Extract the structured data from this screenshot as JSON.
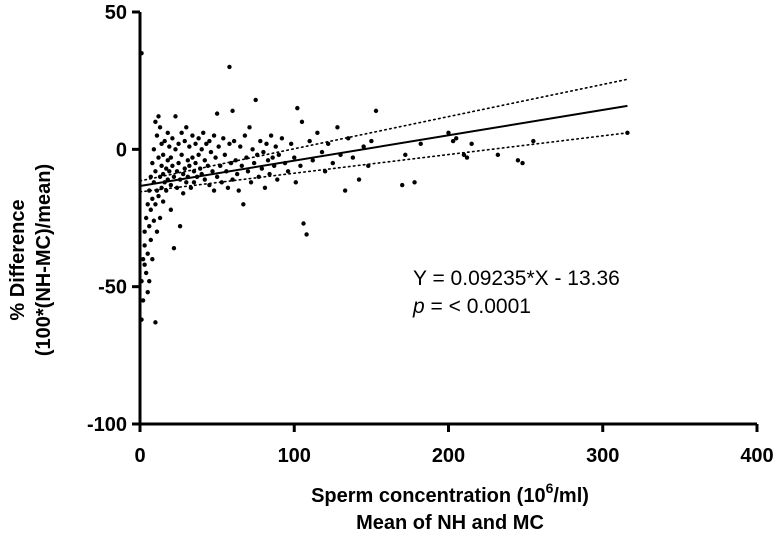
{
  "chart_data": {
    "type": "scatter",
    "title": "",
    "xlabel_line1": "Sperm concentration (10",
    "xlabel_sup": "6",
    "xlabel_line1_end": "/ml)",
    "xlabel_line2": "Mean of NH and MC",
    "ylabel_line1": "% Difference",
    "ylabel_line2": "(100*(NH-MC)/mean)",
    "xlim": [
      0,
      400
    ],
    "ylim": [
      -100,
      50
    ],
    "xticks": [
      0,
      100,
      200,
      300,
      400
    ],
    "yticks": [
      -100,
      -50,
      0,
      50
    ],
    "xtick_labels": [
      "0",
      "100",
      "200",
      "300",
      "400"
    ],
    "ytick_labels": [
      "-100",
      "-50",
      "0",
      "50"
    ],
    "grid": false,
    "regression": {
      "slope": 0.09235,
      "intercept": -13.36,
      "x_range": [
        0,
        316
      ]
    },
    "confidence_band": {
      "upper": [
        [
          0,
          -11.5
        ],
        [
          316,
          25.5
        ]
      ],
      "lower": [
        [
          0,
          -15.5
        ],
        [
          316,
          6
        ]
      ]
    },
    "annotation_equation": "Y = 0.09235*X - 13.36",
    "annotation_p_italic": "p",
    "annotation_p_rest": " = < 0.0001",
    "points": [
      [
        1,
        35
      ],
      [
        1,
        -48
      ],
      [
        1,
        -62
      ],
      [
        2,
        -40
      ],
      [
        2,
        -55
      ],
      [
        3,
        -35
      ],
      [
        3,
        -42
      ],
      [
        3,
        -30
      ],
      [
        4,
        -25
      ],
      [
        4,
        -45
      ],
      [
        5,
        -52
      ],
      [
        5,
        -20
      ],
      [
        5,
        -38
      ],
      [
        6,
        -15
      ],
      [
        6,
        -28
      ],
      [
        6,
        -48
      ],
      [
        7,
        -10
      ],
      [
        7,
        -22
      ],
      [
        7,
        -33
      ],
      [
        8,
        -5
      ],
      [
        8,
        -18
      ],
      [
        8,
        -40
      ],
      [
        9,
        0
      ],
      [
        9,
        -12
      ],
      [
        9,
        -26
      ],
      [
        10,
        10
      ],
      [
        10,
        -8
      ],
      [
        10,
        -20
      ],
      [
        10,
        -63
      ],
      [
        11,
        5
      ],
      [
        11,
        -15
      ],
      [
        11,
        -30
      ],
      [
        12,
        12
      ],
      [
        12,
        -3
      ],
      [
        12,
        -17
      ],
      [
        13,
        8
      ],
      [
        13,
        -10
      ],
      [
        13,
        -25
      ],
      [
        14,
        2
      ],
      [
        14,
        -6
      ],
      [
        14,
        -14
      ],
      [
        15,
        -2
      ],
      [
        15,
        -9
      ],
      [
        15,
        -19
      ],
      [
        16,
        3
      ],
      [
        16,
        -12
      ],
      [
        17,
        -7
      ],
      [
        17,
        -15
      ],
      [
        18,
        6
      ],
      [
        18,
        -4
      ],
      [
        18,
        -11
      ],
      [
        19,
        1
      ],
      [
        19,
        -8
      ],
      [
        20,
        -3
      ],
      [
        20,
        -13
      ],
      [
        20,
        -22
      ],
      [
        21,
        4
      ],
      [
        21,
        -6
      ],
      [
        22,
        -10
      ],
      [
        22,
        -36
      ],
      [
        23,
        0
      ],
      [
        23,
        12
      ],
      [
        24,
        -8
      ],
      [
        24,
        -14
      ],
      [
        25,
        2
      ],
      [
        25,
        -5
      ],
      [
        26,
        -11
      ],
      [
        26,
        -28
      ],
      [
        27,
        6
      ],
      [
        27,
        -2
      ],
      [
        28,
        -9
      ],
      [
        28,
        -16
      ],
      [
        29,
        3
      ],
      [
        29,
        -7
      ],
      [
        30,
        -12
      ],
      [
        30,
        8
      ],
      [
        31,
        -4
      ],
      [
        31,
        -10
      ],
      [
        32,
        1
      ],
      [
        32,
        -6
      ],
      [
        33,
        -14
      ],
      [
        34,
        5
      ],
      [
        34,
        -3
      ],
      [
        35,
        -8
      ],
      [
        35,
        -12
      ],
      [
        36,
        2
      ],
      [
        36,
        -5
      ],
      [
        37,
        -10
      ],
      [
        38,
        4
      ],
      [
        38,
        -2
      ],
      [
        39,
        -7
      ],
      [
        40,
        0
      ],
      [
        40,
        -9
      ],
      [
        41,
        6
      ],
      [
        42,
        -4
      ],
      [
        42,
        -11
      ],
      [
        43,
        2
      ],
      [
        44,
        -6
      ],
      [
        45,
        -13
      ],
      [
        45,
        3
      ],
      [
        46,
        -1
      ],
      [
        47,
        -8
      ],
      [
        48,
        5
      ],
      [
        48,
        -15
      ],
      [
        49,
        -3
      ],
      [
        50,
        -10
      ],
      [
        50,
        13
      ],
      [
        51,
        1
      ],
      [
        52,
        -6
      ],
      [
        53,
        -12
      ],
      [
        54,
        4
      ],
      [
        55,
        -2
      ],
      [
        56,
        -8
      ],
      [
        57,
        -14
      ],
      [
        58,
        2
      ],
      [
        58,
        30
      ],
      [
        59,
        -5
      ],
      [
        60,
        -11
      ],
      [
        60,
        14
      ],
      [
        61,
        3
      ],
      [
        62,
        -4
      ],
      [
        63,
        -9
      ],
      [
        64,
        -15
      ],
      [
        65,
        1
      ],
      [
        66,
        -6
      ],
      [
        67,
        -20
      ],
      [
        68,
        5
      ],
      [
        69,
        -3
      ],
      [
        70,
        -8
      ],
      [
        71,
        8
      ],
      [
        72,
        -12
      ],
      [
        73,
        0
      ],
      [
        74,
        -5
      ],
      [
        75,
        18
      ],
      [
        76,
        -2
      ],
      [
        77,
        -10
      ],
      [
        78,
        3
      ],
      [
        79,
        -7
      ],
      [
        80,
        -1
      ],
      [
        81,
        -14
      ],
      [
        82,
        2
      ],
      [
        83,
        -4
      ],
      [
        84,
        -9
      ],
      [
        85,
        5
      ],
      [
        86,
        -3
      ],
      [
        87,
        -6
      ],
      [
        88,
        1
      ],
      [
        89,
        -11
      ],
      [
        90,
        -2
      ],
      [
        92,
        4
      ],
      [
        94,
        -5
      ],
      [
        96,
        -8
      ],
      [
        98,
        2
      ],
      [
        100,
        -3
      ],
      [
        101,
        -12
      ],
      [
        102,
        15
      ],
      [
        104,
        -6
      ],
      [
        105,
        10
      ],
      [
        106,
        -27
      ],
      [
        108,
        -31
      ],
      [
        110,
        3
      ],
      [
        112,
        -4
      ],
      [
        115,
        6
      ],
      [
        118,
        -1
      ],
      [
        120,
        -8
      ],
      [
        122,
        2
      ],
      [
        125,
        -5
      ],
      [
        128,
        8
      ],
      [
        130,
        -2
      ],
      [
        133,
        -15
      ],
      [
        135,
        4
      ],
      [
        138,
        -3
      ],
      [
        142,
        -11
      ],
      [
        145,
        1
      ],
      [
        148,
        -6
      ],
      [
        150,
        3
      ],
      [
        153,
        14
      ],
      [
        170,
        -13
      ],
      [
        172,
        -2
      ],
      [
        178,
        -12
      ],
      [
        182,
        2
      ],
      [
        200,
        6
      ],
      [
        203,
        3
      ],
      [
        205,
        4
      ],
      [
        210,
        -2
      ],
      [
        212,
        -3
      ],
      [
        215,
        2
      ],
      [
        232,
        -2
      ],
      [
        245,
        -4
      ],
      [
        248,
        -5
      ],
      [
        255,
        3
      ],
      [
        316,
        6
      ]
    ]
  }
}
